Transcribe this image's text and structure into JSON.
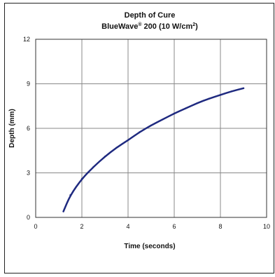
{
  "chart_data": {
    "type": "line",
    "title": "Depth of Cure",
    "subtitle_main": "BlueWave",
    "subtitle_reg": "®",
    "subtitle_mid": " 200 (10 W/cm",
    "subtitle_sup": "2",
    "subtitle_end": ")",
    "xlabel": "Time (seconds)",
    "ylabel": "Depth (mm)",
    "xlim": [
      0,
      10
    ],
    "ylim": [
      0,
      12
    ],
    "xticks": [
      0,
      2,
      4,
      6,
      8,
      10
    ],
    "yticks": [
      0,
      3,
      6,
      9,
      12
    ],
    "grid": true,
    "series": [
      {
        "color": "#1f2a80",
        "x": [
          1.2,
          1.5,
          2.0,
          2.5,
          3.0,
          3.5,
          4.0,
          4.5,
          5.0,
          5.5,
          6.0,
          6.5,
          7.0,
          7.5,
          8.0,
          8.5,
          9.0
        ],
        "y": [
          0.4,
          1.5,
          2.6,
          3.4,
          4.1,
          4.7,
          5.2,
          5.75,
          6.2,
          6.6,
          7.0,
          7.35,
          7.7,
          8.0,
          8.25,
          8.5,
          8.7
        ]
      }
    ]
  }
}
